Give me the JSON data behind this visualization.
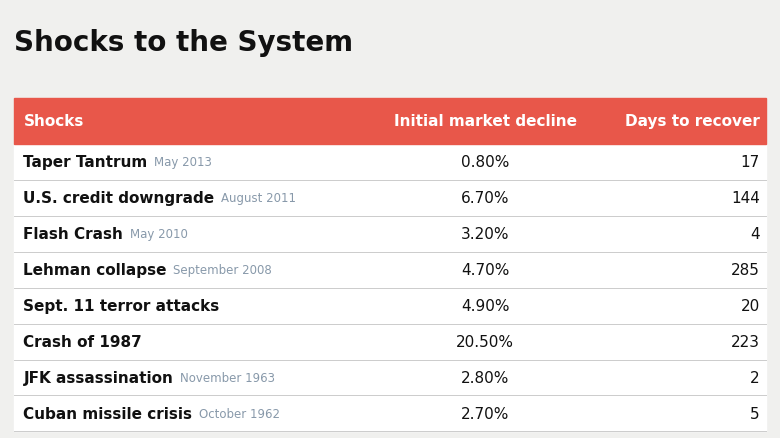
{
  "title": "Shocks to the System",
  "header": [
    "Shocks",
    "Initial market decline",
    "Days to recover"
  ],
  "header_bg": "#E8574A",
  "header_text_color": "#FFFFFF",
  "rows": [
    {
      "shock": "Taper Tantrum",
      "date": "May 2013",
      "decline": "0.80%",
      "days": "17"
    },
    {
      "shock": "U.S. credit downgrade",
      "date": "August 2011",
      "decline": "6.70%",
      "days": "144"
    },
    {
      "shock": "Flash Crash",
      "date": "May 2010",
      "decline": "3.20%",
      "days": "4"
    },
    {
      "shock": "Lehman collapse",
      "date": "September 2008",
      "decline": "4.70%",
      "days": "285"
    },
    {
      "shock": "Sept. 11 terror attacks",
      "date": "",
      "decline": "4.90%",
      "days": "20"
    },
    {
      "shock": "Crash of 1987",
      "date": "",
      "decline": "20.50%",
      "days": "223"
    },
    {
      "shock": "JFK assassination",
      "date": "November 1963",
      "decline": "2.80%",
      "days": "2"
    },
    {
      "shock": "Cuban missile crisis",
      "date": "October 1962",
      "decline": "2.70%",
      "days": "5"
    }
  ],
  "bg_color": "#F0F0EE",
  "divider_color": "#CCCCCC",
  "text_color_main": "#111111",
  "text_color_date": "#8899AA",
  "title_fontsize": 20,
  "header_fontsize": 11,
  "row_fontsize": 11,
  "date_fontsize": 8.5
}
